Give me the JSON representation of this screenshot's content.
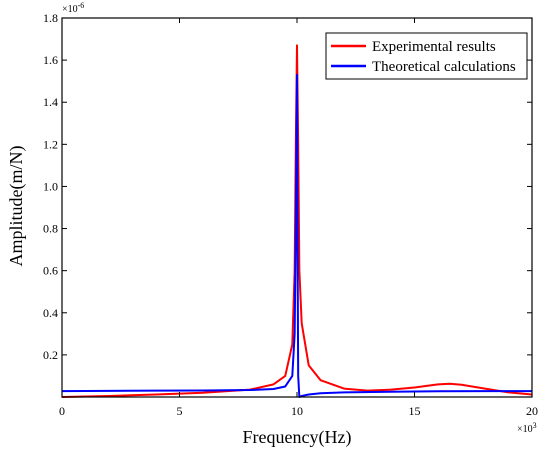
{
  "chart_data": {
    "type": "line",
    "title": "",
    "xlabel": "Frequency(Hz)",
    "ylabel": "Amplitude(m/N)",
    "x_multiplier": "×10",
    "x_multiplier_exp": "3",
    "y_multiplier": "×10",
    "y_multiplier_exp": "-6",
    "xlim": [
      0,
      20
    ],
    "ylim": [
      0,
      1.8
    ],
    "xticks": [
      0,
      5,
      10,
      15,
      20
    ],
    "yticks": [
      0.2,
      0.4,
      0.6,
      0.8,
      1.0,
      1.2,
      1.4,
      1.6,
      1.8
    ],
    "xtick_labels": [
      "0",
      "5",
      "10",
      "15",
      "20"
    ],
    "ytick_labels": [
      "0.2",
      "0.4",
      "0.6",
      "0.8",
      "1.0",
      "1.2",
      "1.4",
      "1.6",
      "1.8"
    ],
    "grid": false,
    "legend_position": "top-right",
    "series": [
      {
        "name": "Experimental results",
        "color": "#ff0000",
        "x": [
          0,
          2,
          4,
          6,
          8,
          9,
          9.5,
          9.8,
          9.9,
          9.95,
          10.0,
          10.05,
          10.1,
          10.2,
          10.5,
          11,
          12,
          13,
          14,
          15,
          16,
          16.5,
          17,
          18,
          19,
          20
        ],
        "y": [
          0.0,
          0.005,
          0.012,
          0.02,
          0.035,
          0.06,
          0.1,
          0.25,
          0.6,
          1.2,
          1.67,
          1.2,
          0.6,
          0.35,
          0.15,
          0.08,
          0.04,
          0.03,
          0.035,
          0.045,
          0.06,
          0.063,
          0.058,
          0.04,
          0.022,
          0.012
        ]
      },
      {
        "name": "Theoretical calculations",
        "color": "#0000ff",
        "x": [
          0,
          2,
          4,
          6,
          8,
          9,
          9.5,
          9.8,
          9.9,
          9.95,
          10.0,
          10.02,
          10.05,
          10.1,
          10.2,
          10.5,
          11,
          12,
          14,
          16,
          18,
          20
        ],
        "y": [
          0.028,
          0.029,
          0.03,
          0.031,
          0.033,
          0.038,
          0.05,
          0.1,
          0.3,
          0.8,
          1.53,
          0.8,
          0.1,
          0.0,
          0.005,
          0.012,
          0.018,
          0.022,
          0.025,
          0.027,
          0.028,
          0.028
        ]
      }
    ]
  }
}
